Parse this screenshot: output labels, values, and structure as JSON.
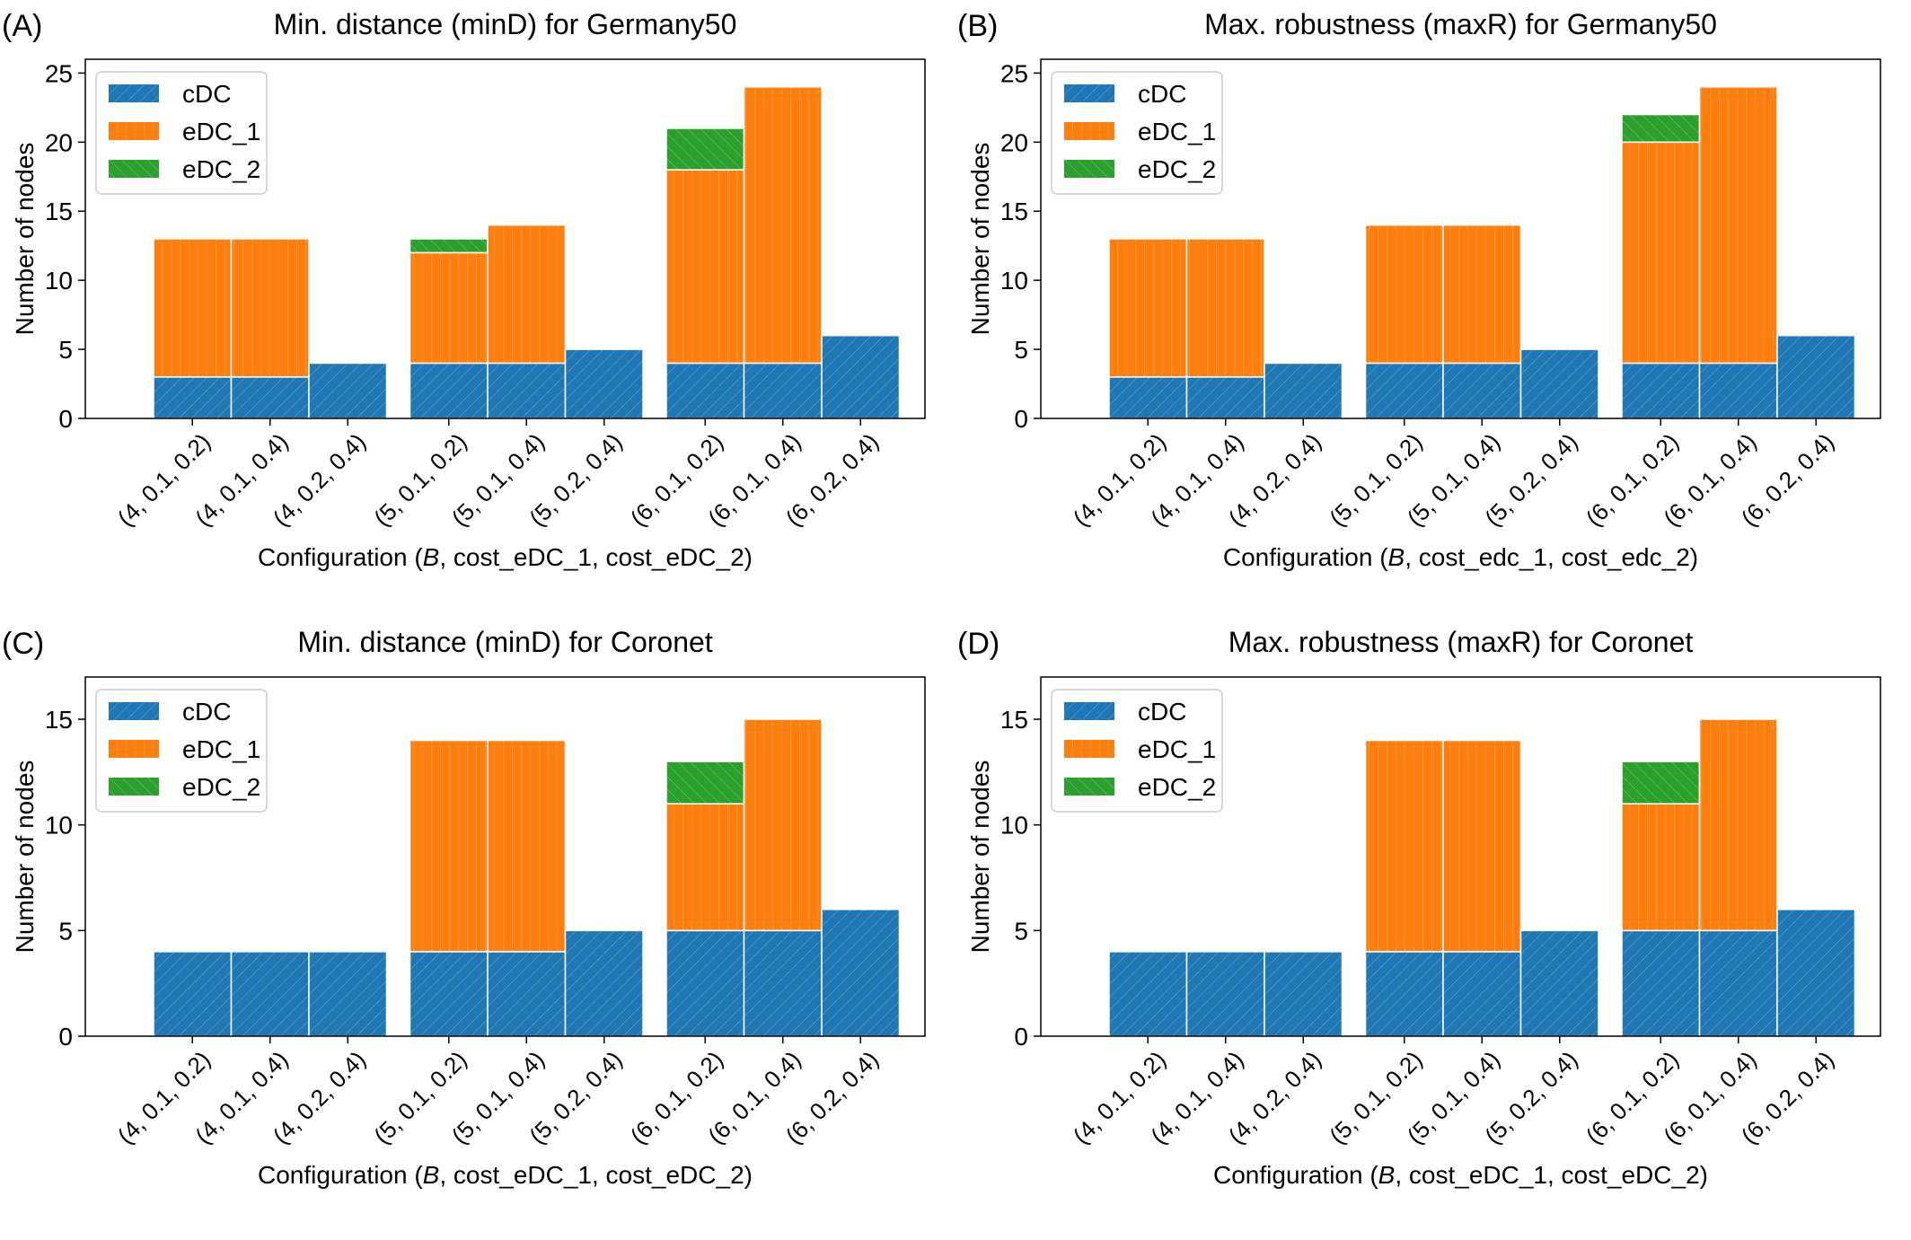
{
  "colors": {
    "cDC": "#1f77b4",
    "eDC_1": "#ff7f0e",
    "eDC_2": "#2ca02c"
  },
  "chart_data": [
    {
      "type": "bar",
      "panel_letter": "(A)",
      "title": "Min. distance (minD) for Germany50",
      "xlabel_parts": [
        "Configuration (",
        "B",
        ", cost_eDC_1, cost_eDC_2)"
      ],
      "ylabel": "Number of nodes",
      "ylim": [
        0,
        26
      ],
      "yticks": [
        0,
        5,
        10,
        15,
        20,
        25
      ],
      "legend": [
        "cDC",
        "eDC_1",
        "eDC_2"
      ],
      "legend_position": "top-left",
      "grid": false,
      "categories": [
        "(4, 0.1, 0.2)",
        "(4, 0.1, 0.4)",
        "(4, 0.2, 0.4)",
        "(5, 0.1, 0.2)",
        "(5, 0.1, 0.4)",
        "(5, 0.2, 0.4)",
        "(6, 0.1, 0.2)",
        "(6, 0.1, 0.4)",
        "(6, 0.2, 0.4)"
      ],
      "series": [
        {
          "name": "cDC",
          "values": [
            3,
            3,
            4,
            4,
            4,
            5,
            4,
            4,
            6
          ]
        },
        {
          "name": "eDC_1",
          "values": [
            10,
            10,
            0,
            8,
            10,
            0,
            14,
            20,
            0
          ]
        },
        {
          "name": "eDC_2",
          "values": [
            0,
            0,
            0,
            1,
            0,
            0,
            3,
            0,
            0
          ]
        }
      ]
    },
    {
      "type": "bar",
      "panel_letter": "(B)",
      "title": "Max. robustness (maxR) for Germany50",
      "xlabel_parts": [
        "Configuration (",
        "B",
        ", cost_edc_1, cost_edc_2)"
      ],
      "ylabel": "Number of nodes",
      "ylim": [
        0,
        26
      ],
      "yticks": [
        0,
        5,
        10,
        15,
        20,
        25
      ],
      "legend": [
        "cDC",
        "eDC_1",
        "eDC_2"
      ],
      "legend_position": "top-left",
      "grid": false,
      "categories": [
        "(4, 0.1, 0.2)",
        "(4, 0.1, 0.4)",
        "(4, 0.2, 0.4)",
        "(5, 0.1, 0.2)",
        "(5, 0.1, 0.4)",
        "(5, 0.2, 0.4)",
        "(6, 0.1, 0.2)",
        "(6, 0.1, 0.4)",
        "(6, 0.2, 0.4)"
      ],
      "series": [
        {
          "name": "cDC",
          "values": [
            3,
            3,
            4,
            4,
            4,
            5,
            4,
            4,
            6
          ]
        },
        {
          "name": "eDC_1",
          "values": [
            10,
            10,
            0,
            10,
            10,
            0,
            16,
            20,
            0
          ]
        },
        {
          "name": "eDC_2",
          "values": [
            0,
            0,
            0,
            0,
            0,
            0,
            2,
            0,
            0
          ]
        }
      ]
    },
    {
      "type": "bar",
      "panel_letter": "(C)",
      "title": "Min. distance (minD) for Coronet",
      "xlabel_parts": [
        "Configuration (",
        "B",
        ", cost_eDC_1, cost_eDC_2)"
      ],
      "ylabel": "Number of nodes",
      "ylim": [
        0,
        17
      ],
      "yticks": [
        0,
        5,
        10,
        15
      ],
      "legend": [
        "cDC",
        "eDC_1",
        "eDC_2"
      ],
      "legend_position": "top-left",
      "grid": false,
      "categories": [
        "(4, 0.1, 0.2)",
        "(4, 0.1, 0.4)",
        "(4, 0.2, 0.4)",
        "(5, 0.1, 0.2)",
        "(5, 0.1, 0.4)",
        "(5, 0.2, 0.4)",
        "(6, 0.1, 0.2)",
        "(6, 0.1, 0.4)",
        "(6, 0.2, 0.4)"
      ],
      "series": [
        {
          "name": "cDC",
          "values": [
            4,
            4,
            4,
            4,
            4,
            5,
            5,
            5,
            6
          ]
        },
        {
          "name": "eDC_1",
          "values": [
            0,
            0,
            0,
            10,
            10,
            0,
            6,
            10,
            0
          ]
        },
        {
          "name": "eDC_2",
          "values": [
            0,
            0,
            0,
            0,
            0,
            0,
            2,
            0,
            0
          ]
        }
      ]
    },
    {
      "type": "bar",
      "panel_letter": "(D)",
      "title": "Max. robustness (maxR) for Coronet",
      "xlabel_parts": [
        "Configuration (",
        "B",
        ", cost_eDC_1, cost_eDC_2)"
      ],
      "ylabel": "Number of nodes",
      "ylim": [
        0,
        17
      ],
      "yticks": [
        0,
        5,
        10,
        15
      ],
      "legend": [
        "cDC",
        "eDC_1",
        "eDC_2"
      ],
      "legend_position": "top-left",
      "grid": false,
      "categories": [
        "(4, 0.1, 0.2)",
        "(4, 0.1, 0.4)",
        "(4, 0.2, 0.4)",
        "(5, 0.1, 0.2)",
        "(5, 0.1, 0.4)",
        "(5, 0.2, 0.4)",
        "(6, 0.1, 0.2)",
        "(6, 0.1, 0.4)",
        "(6, 0.2, 0.4)"
      ],
      "series": [
        {
          "name": "cDC",
          "values": [
            4,
            4,
            4,
            4,
            4,
            5,
            5,
            5,
            6
          ]
        },
        {
          "name": "eDC_1",
          "values": [
            0,
            0,
            0,
            10,
            10,
            0,
            6,
            10,
            0
          ]
        },
        {
          "name": "eDC_2",
          "values": [
            0,
            0,
            0,
            0,
            0,
            0,
            2,
            0,
            0
          ]
        }
      ]
    }
  ]
}
